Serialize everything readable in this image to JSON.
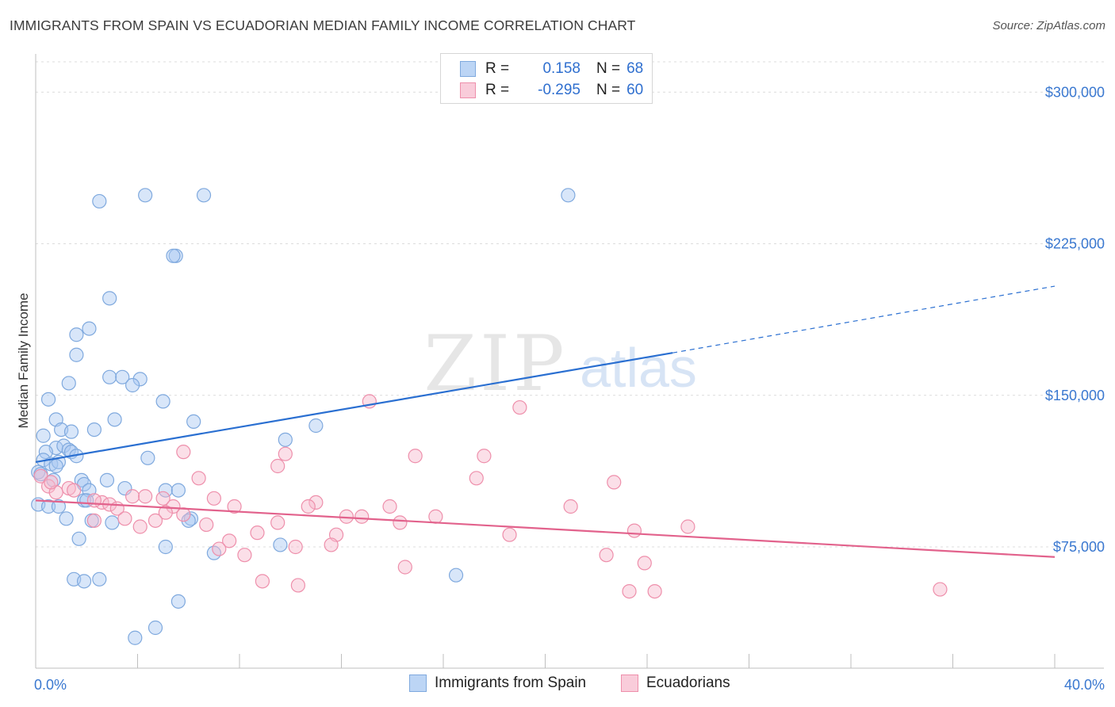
{
  "header": {
    "title": "IMMIGRANTS FROM SPAIN VS ECUADORIAN MEDIAN FAMILY INCOME CORRELATION CHART",
    "source": "Source: ZipAtlas.com"
  },
  "legend": {
    "rows": [
      {
        "r_label": "R =",
        "r_value": "0.158",
        "n_label": "N =",
        "n_value": "68",
        "color": "#a9c8f1"
      },
      {
        "r_label": "R =",
        "r_value": "-0.295",
        "n_label": "N =",
        "n_value": "60",
        "color": "#f6b8cb"
      }
    ]
  },
  "watermark": {
    "zip": "ZIP",
    "atlas": "atlas"
  },
  "chart_data": {
    "type": "scatter",
    "title": "IMMIGRANTS FROM SPAIN VS ECUADORIAN MEDIAN FAMILY INCOME CORRELATION CHART",
    "xlabel": "",
    "ylabel": "Median Family Income",
    "xlim": [
      0,
      40
    ],
    "ylim": [
      15000,
      315000
    ],
    "x_tick_labels": [
      "0.0%",
      "40.0%"
    ],
    "y_ticks": [
      {
        "value": 75000,
        "label": "$75,000"
      },
      {
        "value": 150000,
        "label": "$150,000"
      },
      {
        "value": 225000,
        "label": "$225,000"
      },
      {
        "value": 300000,
        "label": "$300,000"
      }
    ],
    "series": [
      {
        "name": "Immigrants from Spain",
        "color": "#a9c8f1",
        "stroke": "#7fa9de",
        "trend": {
          "x0": 0,
          "y0": 117000,
          "x1": 25,
          "y1": 171000,
          "dash_to_x": 40,
          "dash_to_y": 204000,
          "color": "#2a6fd1"
        },
        "points": [
          [
            2.5,
            246000
          ],
          [
            4.3,
            249000
          ],
          [
            6.6,
            249000
          ],
          [
            20.9,
            249000
          ],
          [
            5.5,
            219000
          ],
          [
            5.4,
            219000
          ],
          [
            2.9,
            198000
          ],
          [
            2.1,
            183000
          ],
          [
            1.6,
            180000
          ],
          [
            1.6,
            170000
          ],
          [
            2.9,
            159000
          ],
          [
            3.4,
            159000
          ],
          [
            4.1,
            158000
          ],
          [
            3.8,
            155000
          ],
          [
            1.3,
            156000
          ],
          [
            0.5,
            148000
          ],
          [
            5.0,
            147000
          ],
          [
            0.8,
            138000
          ],
          [
            3.1,
            138000
          ],
          [
            6.2,
            137000
          ],
          [
            11.0,
            135000
          ],
          [
            1.0,
            133000
          ],
          [
            1.4,
            132000
          ],
          [
            2.3,
            133000
          ],
          [
            0.3,
            130000
          ],
          [
            9.8,
            128000
          ],
          [
            0.8,
            124000
          ],
          [
            1.1,
            125000
          ],
          [
            1.3,
            123000
          ],
          [
            1.4,
            122000
          ],
          [
            0.4,
            122000
          ],
          [
            1.6,
            120000
          ],
          [
            4.4,
            119000
          ],
          [
            0.3,
            118000
          ],
          [
            0.6,
            116000
          ],
          [
            0.9,
            117000
          ],
          [
            0.8,
            115000
          ],
          [
            0.1,
            112000
          ],
          [
            0.7,
            108000
          ],
          [
            1.8,
            108000
          ],
          [
            2.8,
            108000
          ],
          [
            1.9,
            106000
          ],
          [
            2.1,
            103000
          ],
          [
            3.5,
            104000
          ],
          [
            5.1,
            103000
          ],
          [
            5.6,
            103000
          ],
          [
            0.1,
            96000
          ],
          [
            0.5,
            95000
          ],
          [
            0.9,
            95000
          ],
          [
            1.9,
            98000
          ],
          [
            2.0,
            98000
          ],
          [
            1.2,
            89000
          ],
          [
            2.2,
            88000
          ],
          [
            3.0,
            87000
          ],
          [
            6.1,
            89000
          ],
          [
            6.0,
            88000
          ],
          [
            1.7,
            79000
          ],
          [
            5.1,
            75000
          ],
          [
            7.0,
            72000
          ],
          [
            9.6,
            76000
          ],
          [
            1.5,
            59000
          ],
          [
            1.9,
            58000
          ],
          [
            2.5,
            59000
          ],
          [
            16.5,
            61000
          ],
          [
            5.6,
            48000
          ],
          [
            4.7,
            35000
          ],
          [
            3.9,
            30000
          ],
          [
            0.2,
            111000
          ]
        ]
      },
      {
        "name": "Ecuadorians",
        "color": "#f6b8cb",
        "stroke": "#ee8fab",
        "trend": {
          "x0": 0,
          "y0": 98000,
          "x1": 40,
          "y1": 70000,
          "color": "#e2628c"
        },
        "points": [
          [
            13.1,
            147000
          ],
          [
            19.0,
            144000
          ],
          [
            5.8,
            122000
          ],
          [
            9.8,
            121000
          ],
          [
            14.9,
            120000
          ],
          [
            17.6,
            120000
          ],
          [
            9.5,
            115000
          ],
          [
            0.2,
            110000
          ],
          [
            6.4,
            109000
          ],
          [
            17.3,
            109000
          ],
          [
            22.7,
            107000
          ],
          [
            0.5,
            105000
          ],
          [
            1.3,
            104000
          ],
          [
            1.5,
            103000
          ],
          [
            0.8,
            102000
          ],
          [
            3.8,
            100000
          ],
          [
            4.3,
            100000
          ],
          [
            2.6,
            97000
          ],
          [
            2.3,
            98000
          ],
          [
            2.9,
            96000
          ],
          [
            5.0,
            99000
          ],
          [
            7.0,
            99000
          ],
          [
            11.0,
            97000
          ],
          [
            3.2,
            94000
          ],
          [
            5.4,
            95000
          ],
          [
            7.8,
            95000
          ],
          [
            10.7,
            95000
          ],
          [
            13.9,
            95000
          ],
          [
            21.0,
            95000
          ],
          [
            5.1,
            92000
          ],
          [
            5.8,
            91000
          ],
          [
            12.2,
            90000
          ],
          [
            12.8,
            90000
          ],
          [
            15.7,
            90000
          ],
          [
            4.7,
            88000
          ],
          [
            9.5,
            87000
          ],
          [
            14.3,
            87000
          ],
          [
            2.3,
            88000
          ],
          [
            4.1,
            85000
          ],
          [
            6.7,
            86000
          ],
          [
            25.6,
            85000
          ],
          [
            23.5,
            83000
          ],
          [
            8.7,
            82000
          ],
          [
            11.8,
            81000
          ],
          [
            18.6,
            81000
          ],
          [
            7.6,
            78000
          ],
          [
            7.2,
            74000
          ],
          [
            10.2,
            75000
          ],
          [
            11.6,
            76000
          ],
          [
            8.2,
            71000
          ],
          [
            22.4,
            71000
          ],
          [
            14.5,
            65000
          ],
          [
            23.9,
            67000
          ],
          [
            8.9,
            58000
          ],
          [
            10.3,
            56000
          ],
          [
            23.3,
            53000
          ],
          [
            24.3,
            53000
          ],
          [
            35.5,
            54000
          ],
          [
            3.5,
            89000
          ],
          [
            0.6,
            107000
          ]
        ]
      }
    ]
  }
}
